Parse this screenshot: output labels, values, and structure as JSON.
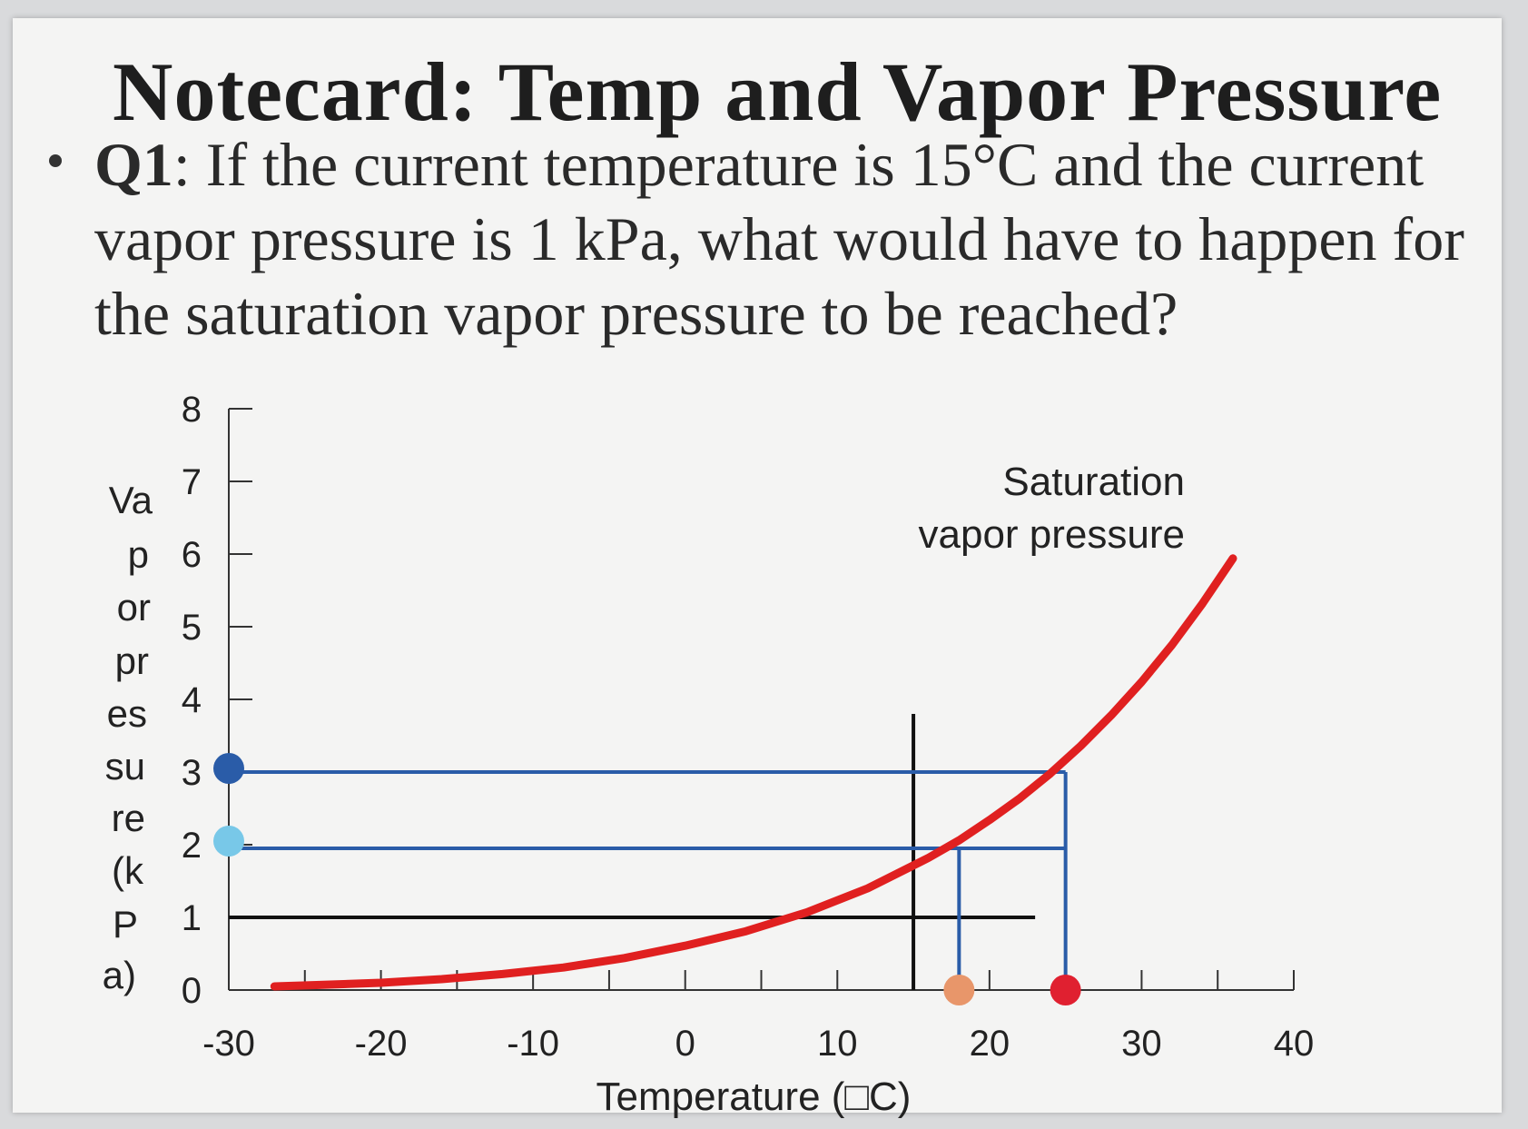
{
  "slide": {
    "title": "Notecard: Temp and Vapor Pressure",
    "question_label": "Q1",
    "question_text": ": If the current temperature is 15°C and the current vapor pressure is 1 kPa, what would have to happen for the saturation vapor pressure to be reached?"
  },
  "chart_data": {
    "type": "line",
    "xlabel": "Temperature (□C)",
    "ylabel_fragments": [
      "Va",
      "p",
      "or",
      "pr",
      "es",
      "su",
      "re",
      "(k",
      "P",
      "a)"
    ],
    "x_ticks": [
      "-30",
      "-20",
      "-10",
      "0",
      "10",
      "20",
      "30",
      "40"
    ],
    "y_ticks": [
      "0",
      "1",
      "2",
      "3",
      "4",
      "5",
      "6",
      "7",
      "8"
    ],
    "xlim": [
      -30,
      40
    ],
    "ylim": [
      0,
      8
    ],
    "series": [
      {
        "name": "Saturation vapor pressure",
        "color": "#e02020",
        "x": [
          -27,
          -24,
          -20,
          -16,
          -12,
          -8,
          -4,
          0,
          4,
          8,
          12,
          16,
          18,
          20,
          22,
          24,
          26,
          28,
          30,
          32,
          34,
          36
        ],
        "y": [
          0.05,
          0.07,
          0.1,
          0.15,
          0.22,
          0.31,
          0.44,
          0.61,
          0.81,
          1.07,
          1.4,
          1.82,
          2.06,
          2.34,
          2.64,
          2.98,
          3.36,
          3.78,
          4.24,
          4.75,
          5.32,
          5.94
        ]
      }
    ],
    "annotation": [
      "Saturation",
      "vapor pressure"
    ],
    "reference_lines": [
      {
        "kind": "horizontal",
        "y": 1,
        "x_from": -30,
        "x_to": 23,
        "color": "#111111"
      },
      {
        "kind": "vertical",
        "x": 15,
        "y_from": 0,
        "y_to": 3.8,
        "color": "#111111"
      },
      {
        "kind": "horizontal",
        "y": 3.0,
        "x_from": -30,
        "x_to": 25,
        "color": "#2a5ca8"
      },
      {
        "kind": "vertical",
        "x": 25,
        "y_from": 0,
        "y_to": 3.0,
        "color": "#2a5ca8"
      },
      {
        "kind": "horizontal",
        "y": 1.95,
        "x_from": -30,
        "x_to": 25,
        "color": "#2a5ca8"
      },
      {
        "kind": "vertical",
        "x": 18,
        "y_from": 0,
        "y_to": 1.95,
        "color": "#2a5ca8"
      }
    ],
    "markers": [
      {
        "x": -30,
        "y": 3.05,
        "color": "#2a5ca8"
      },
      {
        "x": -30,
        "y": 2.05,
        "color": "#78c8e8"
      },
      {
        "x": 18,
        "y": 0,
        "color": "#e8966a"
      },
      {
        "x": 25,
        "y": 0,
        "color": "#e02030"
      }
    ]
  }
}
